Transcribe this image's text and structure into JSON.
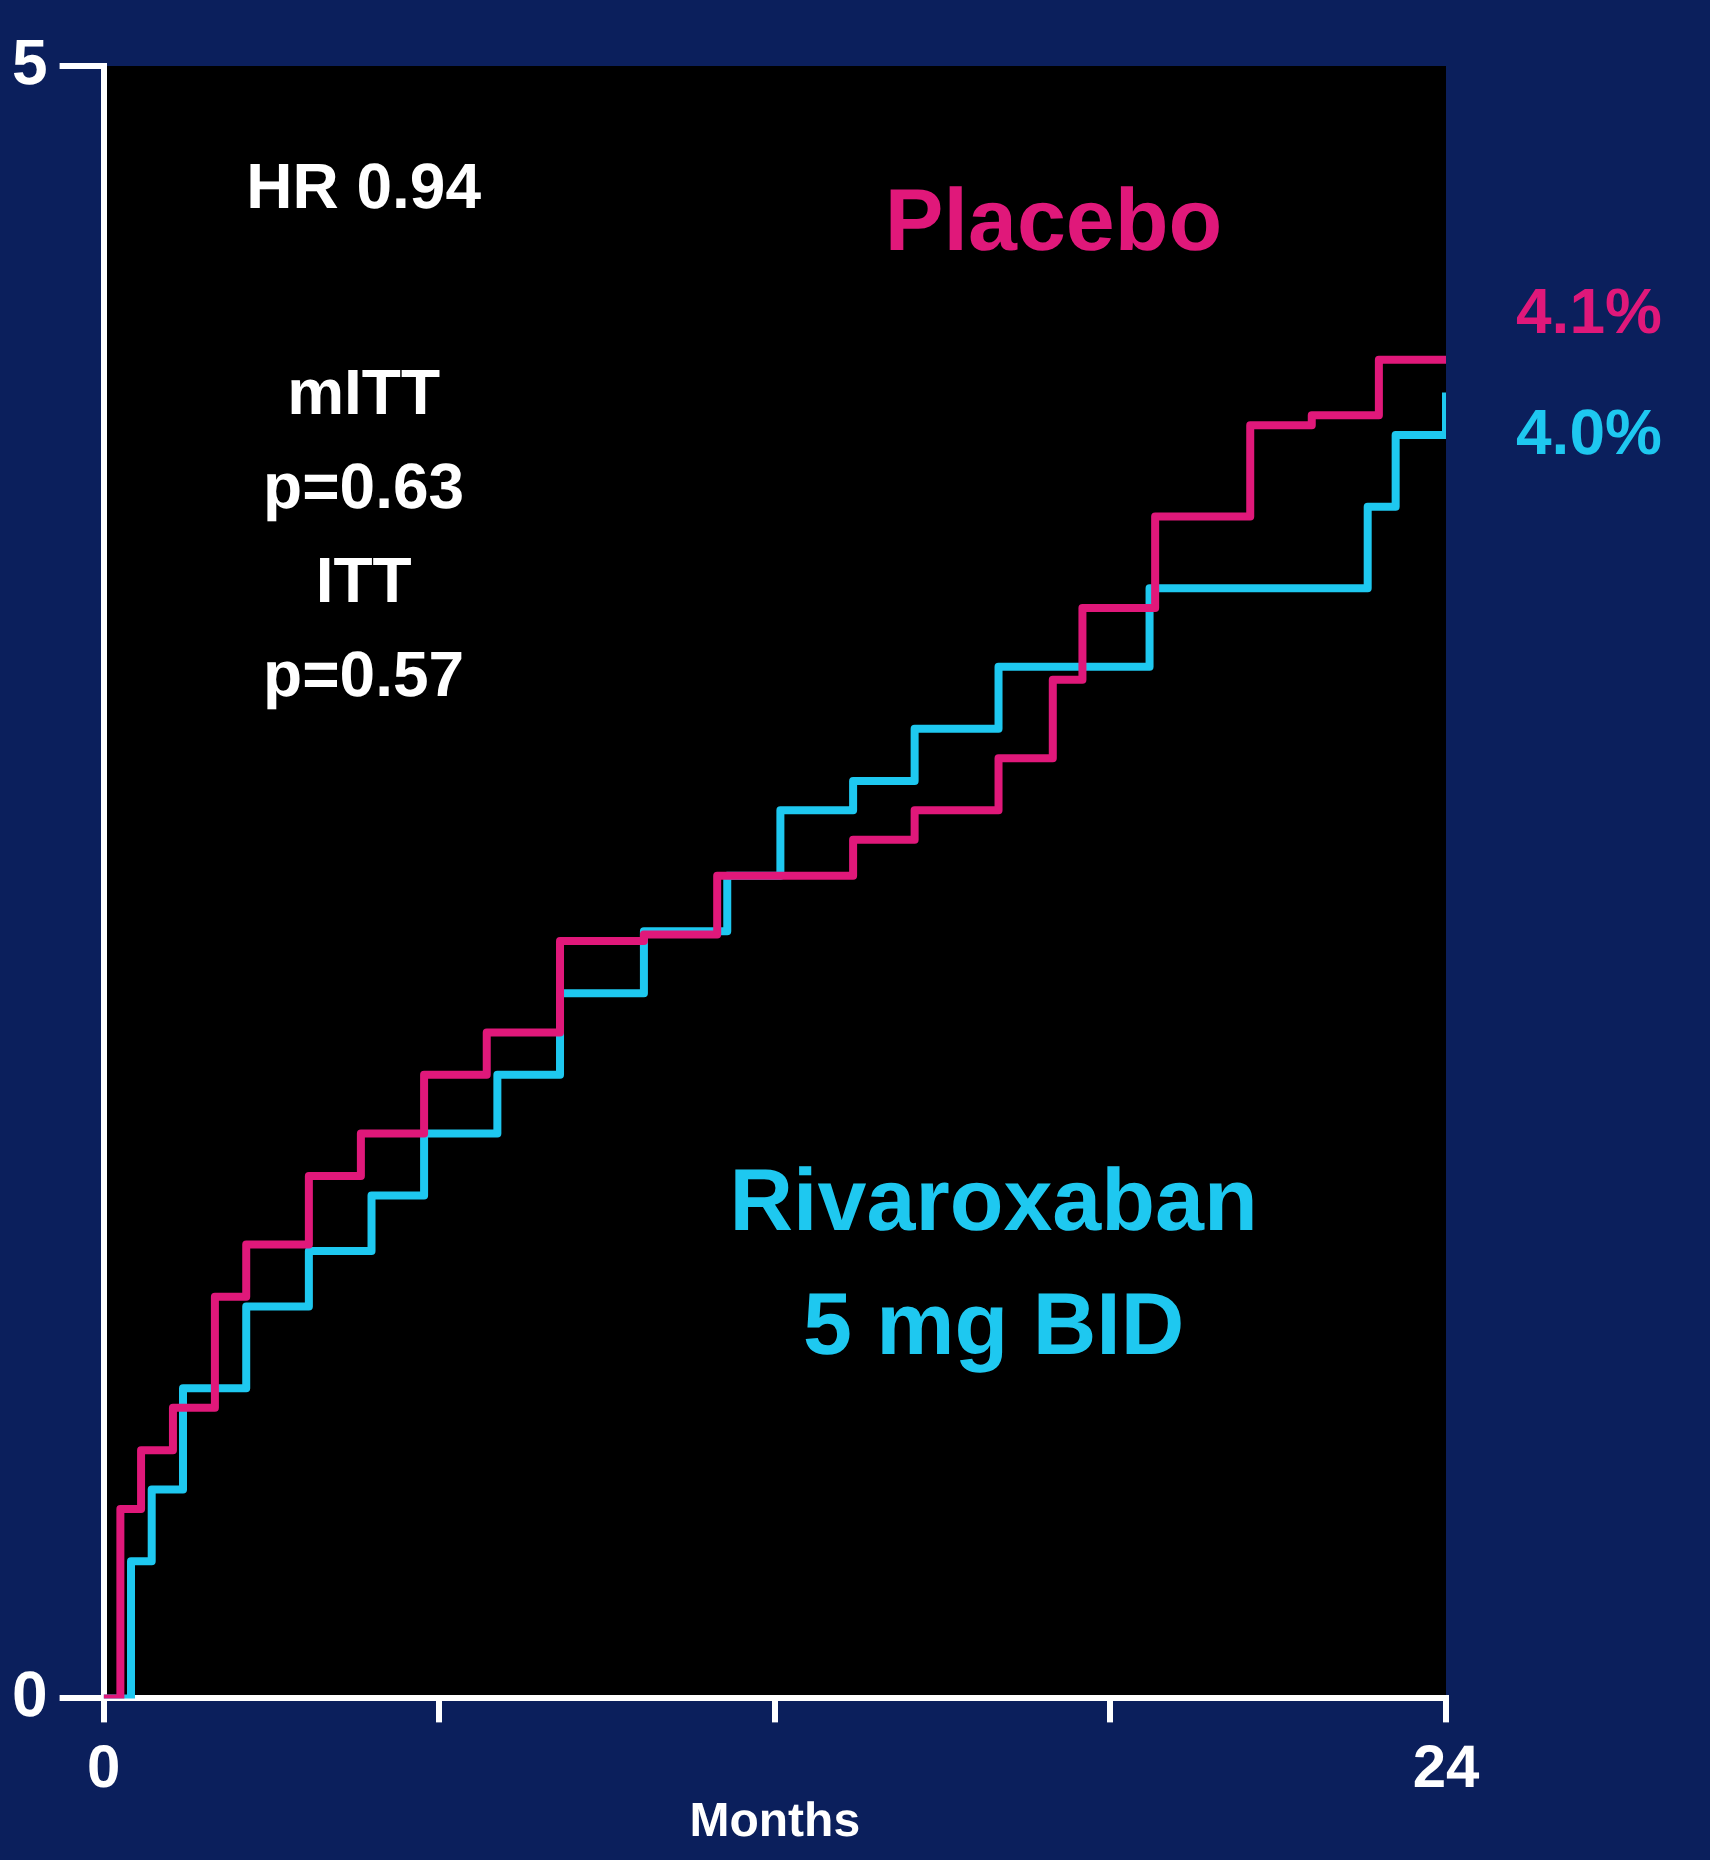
{
  "chart_data": {
    "type": "step",
    "xlabel": "Months",
    "xlim": [
      0,
      24
    ],
    "xticks": [
      0,
      {
        "value": 6,
        "label": null
      },
      {
        "value": 12,
        "label": null
      },
      {
        "value": 18,
        "label": null
      },
      24
    ],
    "ylim": [
      0,
      5
    ],
    "yticks": [
      0,
      5
    ],
    "grid": false,
    "legend": false,
    "series": [
      {
        "name": "Placebo",
        "color": "#e0187a",
        "x": [
          0,
          0.3,
          0.67,
          1.24,
          1.99,
          2.55,
          3.67,
          4.6,
          5.73,
          6.85,
          8.16,
          9.66,
          10.97,
          12.3,
          13.4,
          14.5,
          16.0,
          16.97,
          17.5,
          18.8,
          20.3,
          20.5,
          21.6,
          22.8,
          24
        ],
        "values": [
          0,
          0.58,
          0.76,
          0.89,
          1.23,
          1.39,
          1.6,
          1.73,
          1.91,
          2.04,
          2.32,
          2.34,
          2.52,
          2.52,
          2.63,
          2.72,
          2.88,
          3.12,
          3.34,
          3.62,
          3.62,
          3.9,
          3.93,
          4.1,
          4.1
        ]
      },
      {
        "name": "Rivaroxaban 5 mg BID",
        "color": "#1ec8f0",
        "x": [
          0,
          0.49,
          0.86,
          1.42,
          2.55,
          3.67,
          4.79,
          5.73,
          7.04,
          8.16,
          9.66,
          11.15,
          12.1,
          13.4,
          14.5,
          16.0,
          17.2,
          18.7,
          20.9,
          22.6,
          23.1,
          24
        ],
        "values": [
          0,
          0.42,
          0.64,
          0.95,
          1.2,
          1.37,
          1.54,
          1.73,
          1.91,
          2.16,
          2.35,
          2.52,
          2.72,
          2.81,
          2.97,
          3.16,
          3.16,
          3.4,
          3.4,
          3.65,
          3.87,
          4.0
        ]
      }
    ],
    "annotations": [
      "HR 0.94",
      "mITT\np=0.63\nITT\np=0.57",
      {
        "text": "4.1%",
        "x": 24,
        "y": 4.1
      },
      {
        "text": "4.0%",
        "x": 24,
        "y": 4.0
      }
    ]
  }
}
